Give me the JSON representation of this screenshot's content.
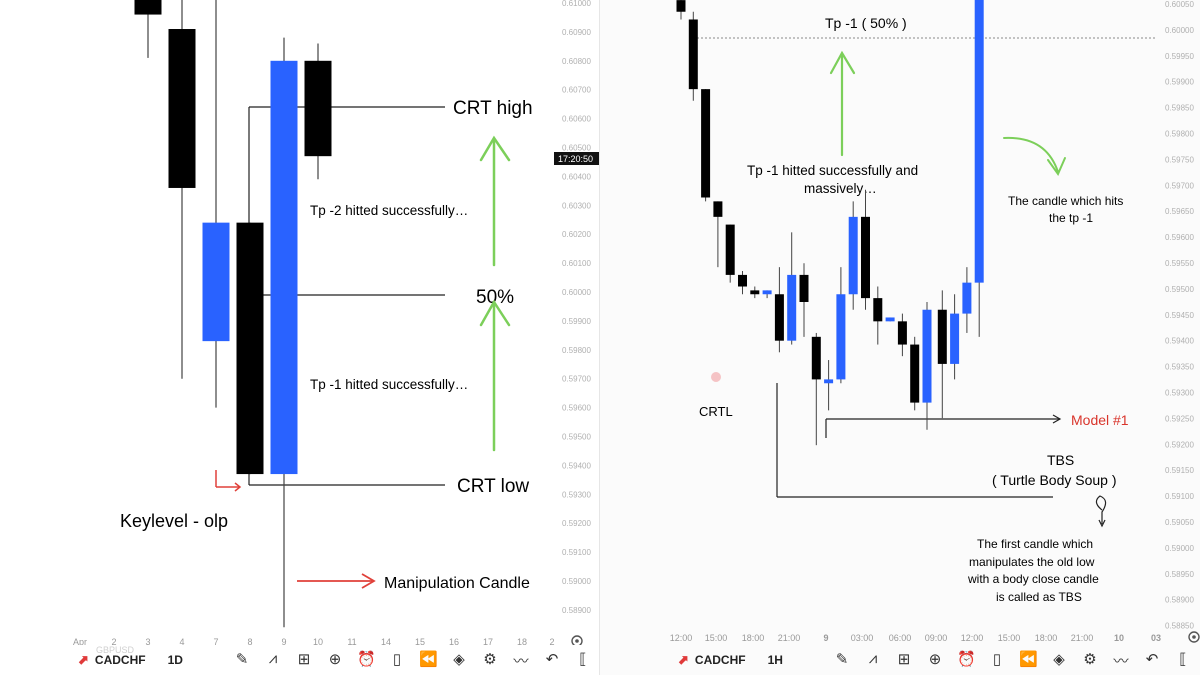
{
  "chart_data": [
    {
      "type": "candlestick",
      "symbol": "CADCHF",
      "timeframe": "1D",
      "price_labels": [
        "0.61000",
        "0.60900",
        "0.60800",
        "0.60700",
        "0.60600",
        "0.60500",
        "0.60400",
        "0.60300",
        "0.60200",
        "0.60100",
        "0.60000",
        "0.59900",
        "0.59800",
        "0.59700",
        "0.59600",
        "0.59500",
        "0.59400",
        "0.59300",
        "0.59200",
        "0.59100",
        "0.59000",
        "0.58900"
      ],
      "current_time": "17:20:50",
      "date_labels": [
        "Apr",
        "2",
        "3",
        "4",
        "7",
        "8",
        "9",
        "10",
        "11",
        "14",
        "15",
        "16",
        "17",
        "18",
        "2"
      ],
      "candles": [
        {
          "date": "3",
          "open": 0.6096,
          "close": 0.6106,
          "high": 0.611,
          "low": 0.6081,
          "color": "#000000"
        },
        {
          "date": "4",
          "open": 0.6091,
          "close": 0.6036,
          "high": 0.6105,
          "low": 0.597,
          "color": "#000000"
        },
        {
          "date": "7",
          "open": 0.5983,
          "close": 0.6024,
          "high": 0.613,
          "low": 0.596,
          "color": "#2962ff"
        },
        {
          "date": "8",
          "open": 0.6024,
          "close": 0.5937,
          "high": 0.6024,
          "low": 0.5937,
          "color": "#000000"
        },
        {
          "date": "9",
          "open": 0.5937,
          "close": 0.608,
          "high": 0.6088,
          "low": 0.5884,
          "color": "#2962ff"
        },
        {
          "date": "10",
          "open": 0.608,
          "close": 0.6047,
          "high": 0.6086,
          "low": 0.6039,
          "color": "#000000"
        }
      ],
      "annotations": {
        "crt_high": "CRT high",
        "tp2": "Tp -2 hitted successfully…",
        "fifty": "50%",
        "tp1": "Tp -1 hitted successfully…",
        "crt_low": "CRT low",
        "keylevel": "Keylevel - olp",
        "manipulation": "Manipulation Candle"
      },
      "colors": {
        "bull": "#2962ff",
        "bear": "#000000",
        "arrow_green": "#7ccf5a",
        "arrow_red": "#e0413a"
      }
    },
    {
      "type": "candlestick",
      "symbol": "CADCHF",
      "timeframe": "1H",
      "price_labels": [
        "0.60050",
        "0.60000",
        "0.59950",
        "0.59900",
        "0.59850",
        "0.59800",
        "0.59750",
        "0.59700",
        "0.59650",
        "0.59600",
        "0.59550",
        "0.59500",
        "0.59450",
        "0.59400",
        "0.59350",
        "0.59300",
        "0.59250",
        "0.59200",
        "0.59150",
        "0.59100",
        "0.59050",
        "0.59000",
        "0.58950",
        "0.58900",
        "0.58850"
      ],
      "time_labels": [
        "12:00",
        "15:00",
        "18:00",
        "21:00",
        "9",
        "03:00",
        "06:00",
        "09:00",
        "12:00",
        "15:00",
        "18:00",
        "21:00",
        "10",
        "03"
      ],
      "candles": [
        {
          "open": 0.6006,
          "close": 0.6003,
          "high": 0.6007,
          "low": 0.6001,
          "color": "#000000"
        },
        {
          "open": 0.6001,
          "close": 0.5983,
          "high": 0.6003,
          "low": 0.598,
          "color": "#000000"
        },
        {
          "open": 0.5983,
          "close": 0.5955,
          "high": 0.5983,
          "low": 0.5954,
          "color": "#000000"
        },
        {
          "open": 0.5954,
          "close": 0.595,
          "high": 0.5954,
          "low": 0.5937,
          "color": "#000000"
        },
        {
          "open": 0.5948,
          "close": 0.5935,
          "high": 0.5948,
          "low": 0.5933,
          "color": "#000000"
        },
        {
          "open": 0.5935,
          "close": 0.5932,
          "high": 0.5936,
          "low": 0.593,
          "color": "#000000"
        },
        {
          "open": 0.5931,
          "close": 0.593,
          "high": 0.5932,
          "low": 0.5929,
          "color": "#000000"
        },
        {
          "open": 0.593,
          "close": 0.5931,
          "high": 0.5931,
          "low": 0.5929,
          "color": "#2962ff"
        },
        {
          "open": 0.593,
          "close": 0.5918,
          "high": 0.5937,
          "low": 0.5915,
          "color": "#000000"
        },
        {
          "open": 0.5918,
          "close": 0.5935,
          "high": 0.5946,
          "low": 0.5917,
          "color": "#2962ff"
        },
        {
          "open": 0.5935,
          "close": 0.5928,
          "high": 0.5938,
          "low": 0.5919,
          "color": "#000000"
        },
        {
          "open": 0.5919,
          "close": 0.5908,
          "high": 0.592,
          "low": 0.5891,
          "color": "#000000"
        },
        {
          "open": 0.5907,
          "close": 0.5908,
          "high": 0.5913,
          "low": 0.59,
          "color": "#2962ff"
        },
        {
          "open": 0.5908,
          "close": 0.593,
          "high": 0.5937,
          "low": 0.5907,
          "color": "#2962ff"
        },
        {
          "open": 0.593,
          "close": 0.595,
          "high": 0.5954,
          "low": 0.5926,
          "color": "#2962ff"
        },
        {
          "open": 0.595,
          "close": 0.5929,
          "high": 0.5957,
          "low": 0.5926,
          "color": "#000000"
        },
        {
          "open": 0.5929,
          "close": 0.5923,
          "high": 0.5932,
          "low": 0.5917,
          "color": "#000000"
        },
        {
          "open": 0.5923,
          "close": 0.5924,
          "high": 0.5924,
          "low": 0.5923,
          "color": "#2962ff"
        },
        {
          "open": 0.5923,
          "close": 0.5917,
          "high": 0.5925,
          "low": 0.5914,
          "color": "#000000"
        },
        {
          "open": 0.5917,
          "close": 0.5902,
          "high": 0.5919,
          "low": 0.59,
          "color": "#000000"
        },
        {
          "open": 0.5902,
          "close": 0.5926,
          "high": 0.5928,
          "low": 0.5895,
          "color": "#2962ff"
        },
        {
          "open": 0.5926,
          "close": 0.5912,
          "high": 0.5931,
          "low": 0.5898,
          "color": "#000000"
        },
        {
          "open": 0.5912,
          "close": 0.5925,
          "high": 0.593,
          "low": 0.5908,
          "color": "#2962ff"
        },
        {
          "open": 0.5925,
          "close": 0.5933,
          "high": 0.5937,
          "low": 0.592,
          "color": "#2962ff"
        },
        {
          "open": 0.5933,
          "close": 0.6007,
          "high": 0.6008,
          "low": 0.5919,
          "color": "#2962ff"
        }
      ],
      "annotations": {
        "tp_label": "Tp -1 ( 50% )",
        "tp_note_1": "Tp -1 hitted successfully and",
        "tp_note_2": "massively…",
        "candle_note_1": "The candle which hits",
        "candle_note_2": "the tp -1",
        "crtl": "CRTL",
        "model": "Model #1",
        "tbs_1": "TBS",
        "tbs_2": "( Turtle Body Soup )",
        "tbs_def_1": "The first candle which",
        "tbs_def_2": "manipulates the old low",
        "tbs_def_3": "with a body close candle",
        "tbs_def_4": "is called as TBS"
      },
      "colors": {
        "bull": "#2962ff",
        "bear": "#000000",
        "arrow_green": "#7ccf5a",
        "model_red": "#d9342b"
      }
    }
  ],
  "toolbar_left": {
    "symbol": "CADCHF",
    "timeframe": "1D"
  },
  "toolbar_right": {
    "symbol": "CADCHF",
    "timeframe": "1H"
  },
  "watermark": "GBPUSD",
  "icons": [
    "pencil-icon",
    "indicators-icon",
    "grid-icon",
    "add-icon",
    "alarm-icon",
    "candles-icon",
    "replay-icon",
    "layers-icon",
    "settings-icon",
    "trend-icon",
    "undo-icon",
    "bracket-icon"
  ]
}
